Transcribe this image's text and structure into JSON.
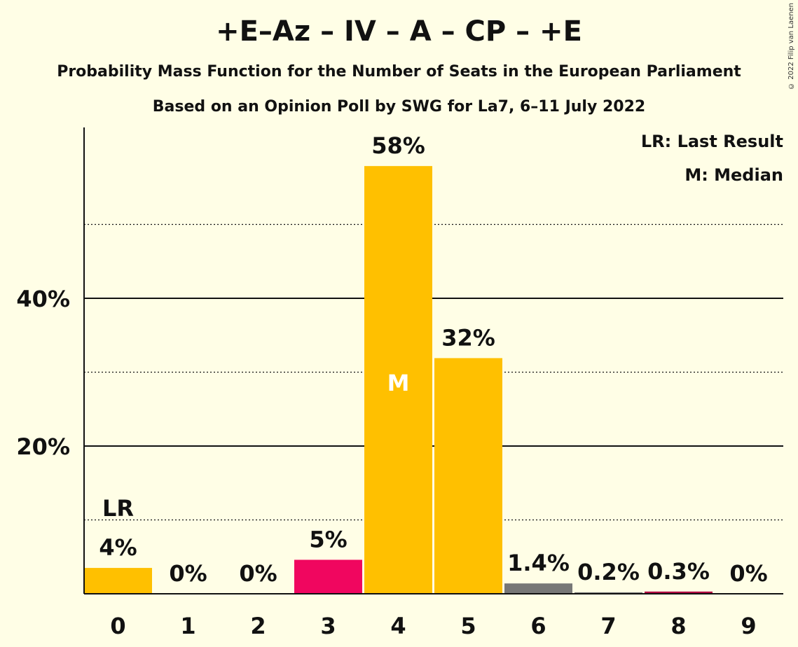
{
  "title": "+E–Az – IV – A – CP – +E",
  "subtitle": "Probability Mass Function for the Number of Seats in the European Parliament",
  "subtitle2": "Based on an Opinion Poll by SWG for La7, 6–11 July 2022",
  "copyright": "© 2022 Filip van Laenen",
  "legend": {
    "last_result": "LR: Last Result",
    "median": "M: Median"
  },
  "markers": {
    "last_result_label": "LR",
    "median_label": "M"
  },
  "chart_data": {
    "type": "bar",
    "categories": [
      "0",
      "1",
      "2",
      "3",
      "4",
      "5",
      "6",
      "7",
      "8",
      "9"
    ],
    "values": [
      3.5,
      0,
      0,
      4.6,
      57.9,
      31.9,
      1.4,
      0.2,
      0.3,
      0
    ],
    "data_labels": [
      "4%",
      "0%",
      "0%",
      "5%",
      "58%",
      "32%",
      "1.4%",
      "0.2%",
      "0.3%",
      "0%"
    ],
    "colors": [
      "#FFC000",
      "#FFC000",
      "#FFC000",
      "#F0065F",
      "#FFC000",
      "#FFC000",
      "#777777",
      "#777777",
      "#B00040",
      "#FFC000"
    ],
    "y_ticks": [
      {
        "value": 20,
        "label": "20%"
      },
      {
        "value": 40,
        "label": "40%"
      }
    ],
    "minor_gridlines": [
      10,
      30,
      50
    ],
    "ylim": [
      0,
      63
    ],
    "last_result_seat": 0,
    "median_seat": 4,
    "legend_position": "top-right"
  }
}
